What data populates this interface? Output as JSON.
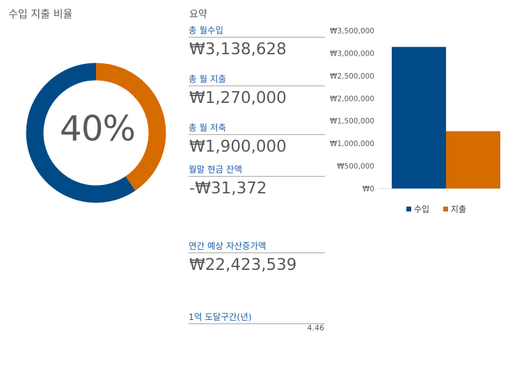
{
  "donut": {
    "title": "수입 지출 비율",
    "percent_label": "40%",
    "expense_share": 0.4047,
    "colors": {
      "income": "#004b87",
      "expense": "#d66b00"
    }
  },
  "summary": {
    "title": "요약",
    "metrics": [
      {
        "label": "총 월수입",
        "value": "₩3,138,628"
      },
      {
        "label": "총 월 지출",
        "value": "₩1,270,000"
      },
      {
        "label": "총 월 저축",
        "value": "₩1,900,000"
      },
      {
        "label": "월말 현금 잔액",
        "value": "-₩31,372"
      },
      {
        "label": "연간 예상 자산증가액",
        "value": "₩22,423,539"
      }
    ],
    "target": {
      "label": "1억 도달구간(년)",
      "value": "4.46"
    }
  },
  "chart_data": {
    "type": "bar",
    "categories": [
      "수입",
      "지출"
    ],
    "values": [
      3138628,
      1270000
    ],
    "colors": [
      "#004b87",
      "#d66b00"
    ],
    "ylim": [
      0,
      3500000
    ],
    "yticks": [
      0,
      500000,
      1000000,
      1500000,
      2000000,
      2500000,
      3000000,
      3500000
    ],
    "ytick_labels": [
      "₩0",
      "₩500,000",
      "₩1,000,000",
      "₩1,500,000",
      "₩2,000,000",
      "₩2,500,000",
      "₩3,000,000",
      "₩3,500,000"
    ],
    "legend": [
      "수입",
      "지출"
    ],
    "legend_position": "bottom",
    "grid": false
  }
}
